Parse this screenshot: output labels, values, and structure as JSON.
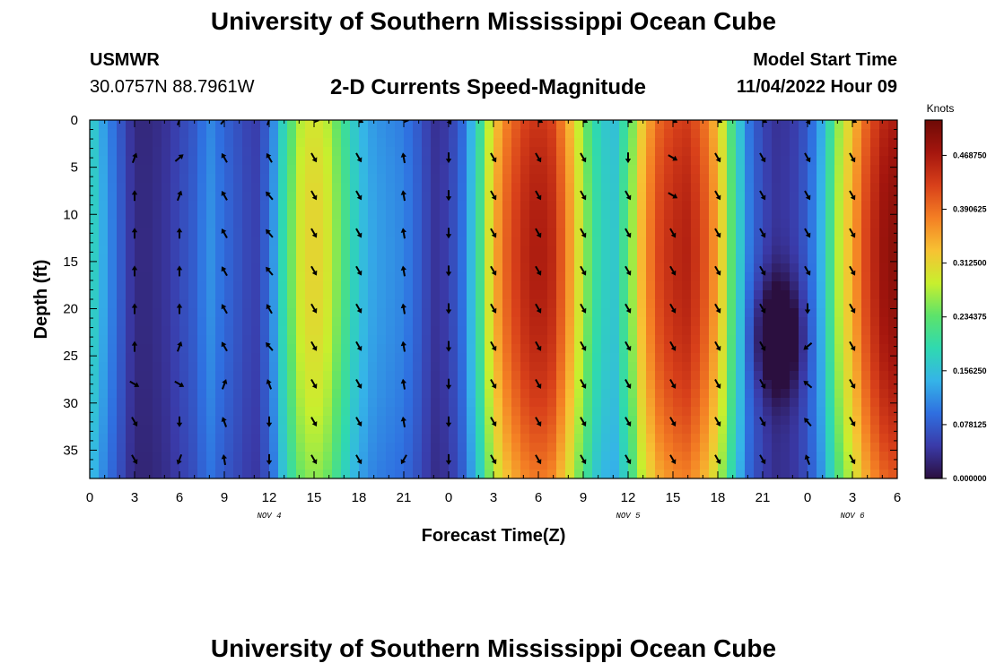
{
  "header": {
    "title": "University of Southern Mississippi Ocean Cube",
    "station": "USMWR",
    "coords": "30.0757N  88.7961W",
    "subtitle": "2-D Currents Speed-Magnitude",
    "start_label": "Model Start Time",
    "start_value": "11/04/2022 Hour 09"
  },
  "footer": {
    "title": "University of Southern Mississippi Ocean Cube"
  },
  "chart_data": {
    "type": "heatmap",
    "title": "2-D Currents Speed-Magnitude",
    "xlabel": "Forecast Time(Z)",
    "ylabel": "Depth (ft)",
    "x_range_hours": [
      0,
      54
    ],
    "y_range_ft": [
      0,
      38
    ],
    "x_tick_labels": [
      "0",
      "3",
      "6",
      "9",
      "12",
      "15",
      "18",
      "21",
      "0",
      "3",
      "6",
      "9",
      "12",
      "15",
      "18",
      "21",
      "0",
      "3",
      "6"
    ],
    "y_tick_values": [
      0,
      5,
      10,
      15,
      20,
      25,
      30,
      35
    ],
    "date_labels": [
      {
        "text": "NOV 4",
        "hour": 12
      },
      {
        "text": "NOV 5",
        "hour": 36
      },
      {
        "text": "NOV 6",
        "hour": 51
      }
    ],
    "colorbar": {
      "title": "Knots",
      "min": 0.0,
      "max": 0.52,
      "labels": [
        "0.000000",
        "0.078125",
        "0.156250",
        "0.234375",
        "0.312500",
        "0.390625",
        "0.468750"
      ],
      "colors": [
        "#2b0f3f",
        "#3a3aa8",
        "#2f6fe0",
        "#35b4e8",
        "#2fd9b0",
        "#5de36a",
        "#c8ef2e",
        "#f7c233",
        "#f47f24",
        "#d8401a",
        "#a5160e",
        "#6e0a06"
      ]
    },
    "speed_profile_knots": [
      [
        0,
        0.19
      ],
      [
        1,
        0.13
      ],
      [
        2,
        0.08
      ],
      [
        3,
        0.03
      ],
      [
        4,
        0.03
      ],
      [
        5,
        0.04
      ],
      [
        6,
        0.06
      ],
      [
        7,
        0.08
      ],
      [
        8,
        0.12
      ],
      [
        9,
        0.09
      ],
      [
        10,
        0.07
      ],
      [
        11,
        0.05
      ],
      [
        12,
        0.09
      ],
      [
        13,
        0.2
      ],
      [
        14,
        0.29
      ],
      [
        15,
        0.32
      ],
      [
        16,
        0.29
      ],
      [
        17,
        0.22
      ],
      [
        18,
        0.16
      ],
      [
        19,
        0.13
      ],
      [
        20,
        0.12
      ],
      [
        21,
        0.11
      ],
      [
        22,
        0.08
      ],
      [
        23,
        0.04
      ],
      [
        24,
        0.05
      ],
      [
        25,
        0.1
      ],
      [
        26,
        0.2
      ],
      [
        27,
        0.34
      ],
      [
        28,
        0.41
      ],
      [
        29,
        0.45
      ],
      [
        30,
        0.47
      ],
      [
        31,
        0.45
      ],
      [
        32,
        0.37
      ],
      [
        33,
        0.27
      ],
      [
        34,
        0.19
      ],
      [
        35,
        0.16
      ],
      [
        36,
        0.23
      ],
      [
        37,
        0.35
      ],
      [
        38,
        0.42
      ],
      [
        39,
        0.45
      ],
      [
        40,
        0.46
      ],
      [
        41,
        0.42
      ],
      [
        42,
        0.35
      ],
      [
        43,
        0.22
      ],
      [
        44,
        0.11
      ],
      [
        45,
        0.06
      ],
      [
        46,
        0.04
      ],
      [
        47,
        0.05
      ],
      [
        48,
        0.08
      ],
      [
        49,
        0.15
      ],
      [
        50,
        0.27
      ],
      [
        51,
        0.35
      ],
      [
        52,
        0.43
      ],
      [
        53,
        0.48
      ],
      [
        54,
        0.5
      ]
    ],
    "arrow_times_hours": [
      3,
      6,
      9,
      12,
      15,
      18,
      21,
      24,
      27,
      30,
      33,
      36,
      39,
      42,
      45,
      48,
      51
    ],
    "arrow_depths_ft": [
      0,
      4,
      8,
      12,
      16,
      20,
      24,
      28,
      32,
      36
    ],
    "arrow_directions_deg": [
      [
        null,
        20,
        40,
        20,
        100,
        120,
        100,
        150,
        null,
        120,
        120,
        120,
        120,
        120,
        120,
        150,
        120
      ],
      [
        20,
        50,
        330,
        330,
        150,
        150,
        350,
        180,
        150,
        150,
        150,
        180,
        120,
        150,
        150,
        150,
        150
      ],
      [
        0,
        20,
        330,
        320,
        150,
        150,
        350,
        180,
        150,
        150,
        150,
        150,
        120,
        150,
        150,
        150,
        150
      ],
      [
        0,
        0,
        330,
        320,
        150,
        150,
        350,
        180,
        150,
        150,
        150,
        150,
        150,
        150,
        150,
        150,
        150
      ],
      [
        0,
        0,
        330,
        320,
        150,
        150,
        350,
        180,
        150,
        150,
        150,
        150,
        150,
        150,
        150,
        150,
        150
      ],
      [
        0,
        0,
        330,
        330,
        150,
        150,
        350,
        180,
        150,
        150,
        150,
        150,
        150,
        150,
        150,
        180,
        150
      ],
      [
        0,
        20,
        330,
        320,
        150,
        150,
        350,
        180,
        150,
        150,
        150,
        150,
        150,
        150,
        150,
        230,
        150
      ],
      [
        120,
        120,
        20,
        340,
        150,
        150,
        350,
        180,
        150,
        150,
        150,
        150,
        150,
        150,
        150,
        310,
        150
      ],
      [
        150,
        180,
        340,
        180,
        150,
        150,
        350,
        180,
        150,
        150,
        150,
        150,
        150,
        150,
        150,
        320,
        150
      ],
      [
        150,
        200,
        350,
        180,
        150,
        150,
        210,
        180,
        150,
        150,
        150,
        150,
        150,
        150,
        150,
        340,
        150
      ]
    ]
  }
}
